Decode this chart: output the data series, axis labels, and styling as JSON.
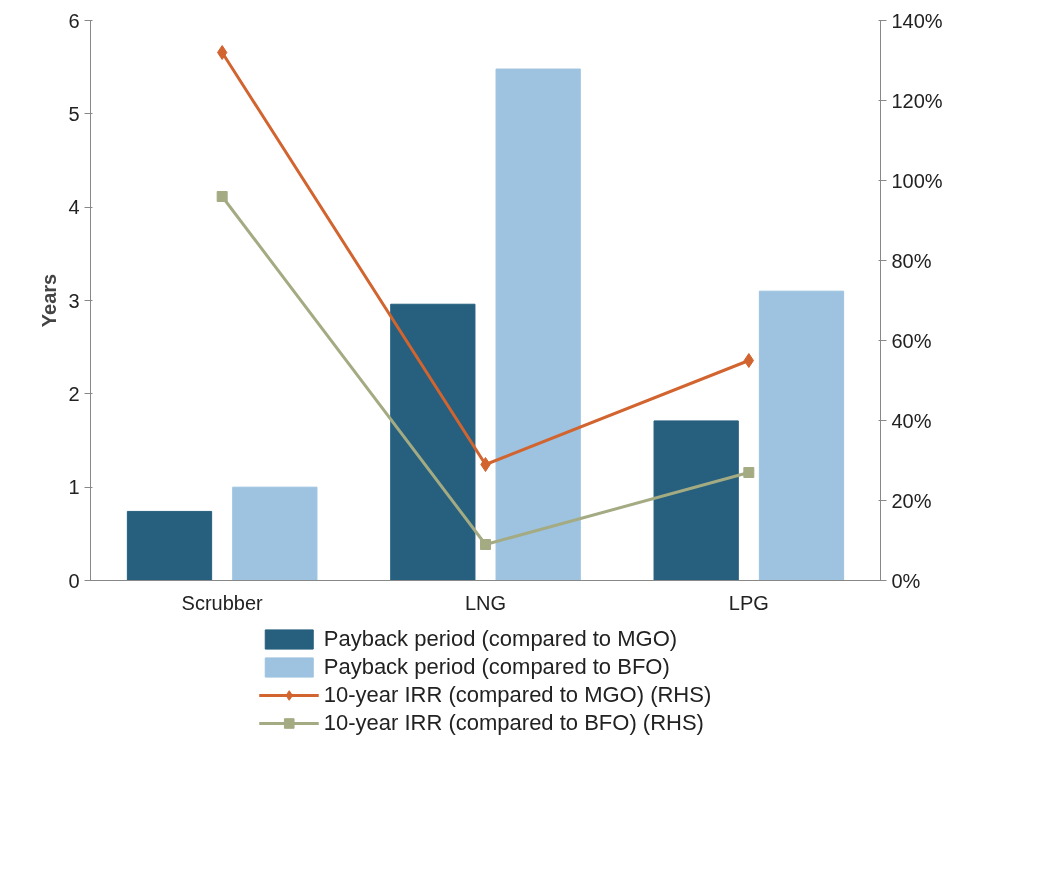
{
  "chart_data": {
    "type": "bar",
    "ylabel": "Years",
    "categories": [
      "Scrubber",
      "LNG",
      "LPG"
    ],
    "ylim": [
      0,
      6
    ],
    "yticks": [
      0,
      1,
      2,
      3,
      4,
      5,
      6
    ],
    "y2lim": [
      0,
      140
    ],
    "y2ticks": [
      {
        "value": 0,
        "label": "0%"
      },
      {
        "value": 20,
        "label": "20%"
      },
      {
        "value": 40,
        "label": "40%"
      },
      {
        "value": 60,
        "label": "60%"
      },
      {
        "value": 80,
        "label": "80%"
      },
      {
        "value": 100,
        "label": "100%"
      },
      {
        "value": 120,
        "label": "120%"
      },
      {
        "value": 140,
        "label": "140%"
      }
    ],
    "grid": false,
    "legend": "bottom",
    "series": [
      {
        "name": "Payback period (compared to MGO)",
        "color": "#26607e",
        "values": [
          0.74,
          2.96,
          1.71
        ]
      },
      {
        "name": "Payback period (compared to BFO)",
        "color": "#9dc3e0",
        "values": [
          1.0,
          5.48,
          3.1
        ]
      },
      {
        "name": "10-year IRR (compared to MGO) (RHS)",
        "type": "line",
        "axis": "y2",
        "marker": "diamond",
        "color": "#d2642f",
        "values": [
          132,
          29,
          55
        ]
      },
      {
        "name": "10-year IRR (compared to BFO) (RHS)",
        "type": "line",
        "axis": "y2",
        "marker": "square",
        "color": "#a4ab82",
        "values": [
          96,
          9,
          27
        ]
      }
    ]
  }
}
